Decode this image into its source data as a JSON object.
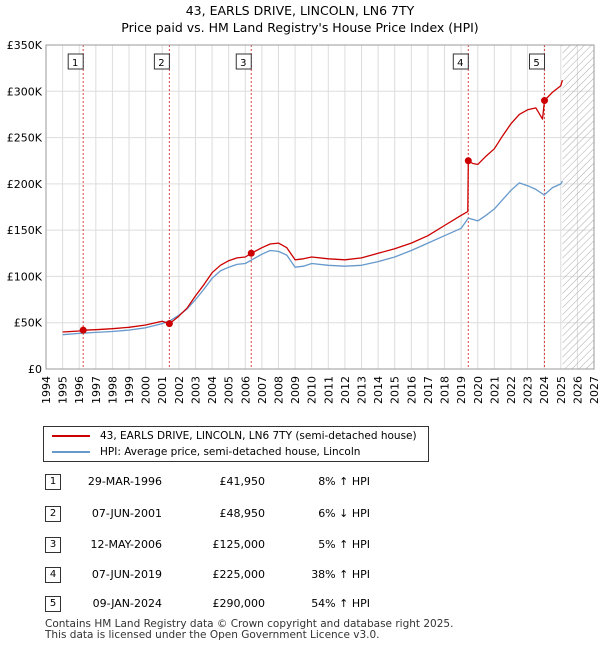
{
  "title": {
    "line1": "43, EARLS DRIVE, LINCOLN, LN6 7TY",
    "line2": "Price paid vs. HM Land Registry's House Price Index (HPI)"
  },
  "legend": {
    "property_label": "43, EARLS DRIVE, LINCOLN, LN6 7TY (semi-detached house)",
    "hpi_label": "HPI: Average price, semi-detached house, Lincoln"
  },
  "colors": {
    "property": "#cc0000",
    "hpi": "#6699cc",
    "hatch": "#aaaaaa",
    "marker_line": "#dd4444"
  },
  "sales": [
    {
      "num": "1",
      "date": "29-MAR-1996",
      "price": "£41,950",
      "hpi": "8% ↑ HPI"
    },
    {
      "num": "2",
      "date": "07-JUN-2001",
      "price": "£48,950",
      "hpi": "6% ↓ HPI"
    },
    {
      "num": "3",
      "date": "12-MAY-2006",
      "price": "£125,000",
      "hpi": "5% ↑ HPI"
    },
    {
      "num": "4",
      "date": "07-JUN-2019",
      "price": "£225,000",
      "hpi": "38% ↑ HPI"
    },
    {
      "num": "5",
      "date": "09-JAN-2024",
      "price": "£290,000",
      "hpi": "54% ↑ HPI"
    }
  ],
  "footer": {
    "line1": "Contains HM Land Registry data © Crown copyright and database right 2025.",
    "line2": "This data is licensed under the Open Government Licence v3.0."
  },
  "chart_data": {
    "type": "line",
    "title": "43, EARLS DRIVE, LINCOLN, LN6 7TY",
    "subtitle": "Price paid vs. HM Land Registry's House Price Index (HPI)",
    "xlim": [
      1994,
      2027
    ],
    "ylim": [
      0,
      350000
    ],
    "x_ticks": [
      1994,
      1995,
      1996,
      1997,
      1998,
      1999,
      2000,
      2001,
      2002,
      2003,
      2004,
      2005,
      2006,
      2007,
      2008,
      2009,
      2010,
      2011,
      2012,
      2013,
      2014,
      2015,
      2016,
      2017,
      2018,
      2019,
      2020,
      2021,
      2022,
      2023,
      2024,
      2025,
      2026,
      2027
    ],
    "y_ticks": [
      0,
      50000,
      100000,
      150000,
      200000,
      250000,
      300000,
      350000
    ],
    "y_tick_labels": [
      "£0",
      "£50K",
      "£100K",
      "£150K",
      "£200K",
      "£250K",
      "£300K",
      "£350K"
    ],
    "grid": true,
    "future_hatch_from": 2025.1,
    "sale_markers": [
      {
        "label": "1",
        "x": 1996.24,
        "y": 41950
      },
      {
        "label": "2",
        "x": 2001.43,
        "y": 48950
      },
      {
        "label": "3",
        "x": 2006.36,
        "y": 125000
      },
      {
        "label": "4",
        "x": 2019.43,
        "y": 225000
      },
      {
        "label": "5",
        "x": 2024.02,
        "y": 290000
      }
    ],
    "series": [
      {
        "name": "43, EARLS DRIVE, LINCOLN, LN6 7TY (semi-detached house)",
        "points": [
          [
            1995.0,
            40000
          ],
          [
            1995.5,
            40500
          ],
          [
            1996.0,
            41000
          ],
          [
            1996.24,
            41950
          ],
          [
            1997.0,
            42500
          ],
          [
            1998.0,
            43500
          ],
          [
            1999.0,
            45000
          ],
          [
            2000.0,
            47500
          ],
          [
            2001.0,
            51500
          ],
          [
            2001.43,
            48950
          ],
          [
            2002.0,
            57000
          ],
          [
            2002.5,
            66000
          ],
          [
            2003.0,
            79000
          ],
          [
            2003.5,
            91000
          ],
          [
            2004.0,
            104000
          ],
          [
            2004.5,
            112000
          ],
          [
            2005.0,
            117000
          ],
          [
            2005.5,
            120000
          ],
          [
            2006.0,
            121000
          ],
          [
            2006.36,
            125000
          ],
          [
            2007.0,
            131000
          ],
          [
            2007.5,
            135000
          ],
          [
            2008.0,
            136000
          ],
          [
            2008.5,
            131000
          ],
          [
            2009.0,
            118000
          ],
          [
            2009.5,
            119000
          ],
          [
            2010.0,
            121000
          ],
          [
            2011.0,
            119000
          ],
          [
            2012.0,
            118000
          ],
          [
            2013.0,
            120000
          ],
          [
            2014.0,
            125000
          ],
          [
            2015.0,
            130000
          ],
          [
            2016.0,
            136000
          ],
          [
            2017.0,
            144000
          ],
          [
            2018.0,
            155000
          ],
          [
            2019.0,
            166000
          ],
          [
            2019.4,
            170000
          ],
          [
            2019.43,
            225000
          ],
          [
            2019.7,
            222000
          ],
          [
            2020.0,
            221000
          ],
          [
            2020.5,
            230000
          ],
          [
            2021.0,
            238000
          ],
          [
            2021.5,
            252000
          ],
          [
            2022.0,
            265000
          ],
          [
            2022.5,
            275000
          ],
          [
            2023.0,
            280000
          ],
          [
            2023.5,
            282000
          ],
          [
            2023.9,
            270000
          ],
          [
            2024.02,
            290000
          ],
          [
            2024.5,
            299000
          ],
          [
            2025.0,
            306000
          ],
          [
            2025.1,
            312000
          ]
        ]
      },
      {
        "name": "HPI: Average price, semi-detached house, Lincoln",
        "points": [
          [
            1995.0,
            37000
          ],
          [
            1996.0,
            38500
          ],
          [
            1997.0,
            39500
          ],
          [
            1998.0,
            40500
          ],
          [
            1999.0,
            42000
          ],
          [
            2000.0,
            44500
          ],
          [
            2001.0,
            49000
          ],
          [
            2001.5,
            52500
          ],
          [
            2002.0,
            58000
          ],
          [
            2002.5,
            65000
          ],
          [
            2003.0,
            75000
          ],
          [
            2003.5,
            86000
          ],
          [
            2004.0,
            98000
          ],
          [
            2004.5,
            106000
          ],
          [
            2005.0,
            110000
          ],
          [
            2005.5,
            113000
          ],
          [
            2006.0,
            114000
          ],
          [
            2006.5,
            119000
          ],
          [
            2007.0,
            124000
          ],
          [
            2007.5,
            128000
          ],
          [
            2008.0,
            127000
          ],
          [
            2008.5,
            123000
          ],
          [
            2009.0,
            110000
          ],
          [
            2009.5,
            111000
          ],
          [
            2010.0,
            114000
          ],
          [
            2011.0,
            112000
          ],
          [
            2012.0,
            111000
          ],
          [
            2013.0,
            112000
          ],
          [
            2014.0,
            116000
          ],
          [
            2015.0,
            121000
          ],
          [
            2016.0,
            128000
          ],
          [
            2017.0,
            136000
          ],
          [
            2018.0,
            144000
          ],
          [
            2019.0,
            152000
          ],
          [
            2019.43,
            163000
          ],
          [
            2020.0,
            160000
          ],
          [
            2020.5,
            166000
          ],
          [
            2021.0,
            173000
          ],
          [
            2021.5,
            183000
          ],
          [
            2022.0,
            193000
          ],
          [
            2022.5,
            201000
          ],
          [
            2023.0,
            198000
          ],
          [
            2023.5,
            194000
          ],
          [
            2024.0,
            188000
          ],
          [
            2024.5,
            196000
          ],
          [
            2025.0,
            200000
          ],
          [
            2025.1,
            203000
          ]
        ]
      }
    ]
  }
}
